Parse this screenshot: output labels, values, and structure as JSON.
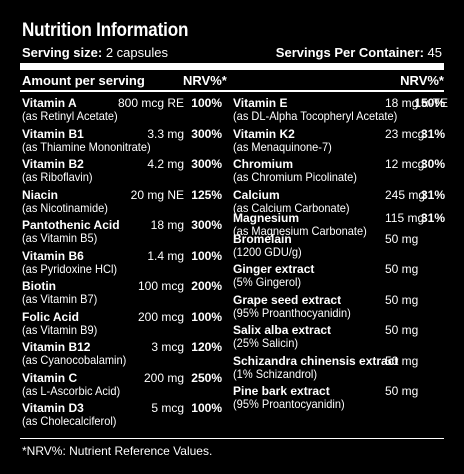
{
  "title": "Nutrition Information",
  "serving": {
    "label": "Serving size:",
    "value": "2 capsules"
  },
  "containers": {
    "label": "Servings Per Container:",
    "value": "45"
  },
  "header": {
    "amount_label": "Amount per serving",
    "nrv_left": "NRV%*",
    "nrv_right": "NRV%*"
  },
  "left": [
    {
      "name": "Vitamin A",
      "sub": "(as Retinyl Acetate)",
      "amount": "800 mcg RE",
      "nrv": "100%"
    },
    {
      "name": "Vitamin B1",
      "sub": "(as Thiamine Mononitrate)",
      "amount": "3.3 mg",
      "nrv": "300%"
    },
    {
      "name": "Vitamin B2",
      "sub": "(as Riboflavin)",
      "amount": "4.2 mg",
      "nrv": "300%"
    },
    {
      "name": "Niacin",
      "sub": "(as Nicotinamide)",
      "amount": "20 mg NE",
      "nrv": "125%"
    },
    {
      "name": "Pantothenic Acid",
      "sub": "(as Vitamin B5)",
      "amount": "18 mg",
      "nrv": "300%"
    },
    {
      "name": "Vitamin B6",
      "sub": "(as Pyridoxine HCl)",
      "amount": "1.4 mg",
      "nrv": "100%"
    },
    {
      "name": "Biotin",
      "sub": "(as Vitamin B7)",
      "amount": "100 mcg",
      "nrv": "200%"
    },
    {
      "name": "Folic Acid",
      "sub": "(as Vitamin B9)",
      "amount": "200 mcg",
      "nrv": "100%"
    },
    {
      "name": "Vitamin B12",
      "sub": "(as Cyanocobalamin)",
      "amount": "3 mcg",
      "nrv": "120%"
    },
    {
      "name": "Vitamin C",
      "sub": "(as L-Ascorbic Acid)",
      "amount": "200 mg",
      "nrv": "250%"
    },
    {
      "name": "Vitamin D3",
      "sub": "(as Cholecalciferol)",
      "amount": "5 mcg",
      "nrv": "100%"
    }
  ],
  "right": [
    {
      "name": "Vitamin E",
      "sub": "(as DL-Alpha Tocopheryl Acetate)",
      "amount": "18 mg α-TE",
      "nrv": "150%"
    },
    {
      "name": "Vitamin K2",
      "sub": "(as Menaquinone-7)",
      "amount": "23 mcg",
      "nrv": "31%"
    },
    {
      "name": "Chromium",
      "sub": "(as Chromium Picolinate)",
      "amount": "12 mcg",
      "nrv": "30%"
    },
    {
      "name": "Calcium",
      "sub": "(as Calcium Carbonate)",
      "amount": "245 mg",
      "nrv": "31%"
    },
    {
      "name": "Magnesium",
      "sub": "(as Magnesium Carbonate)",
      "amount": "115 mg",
      "nrv": "31%"
    },
    {
      "name": "Bromelain",
      "sub": "(1200 GDU/g)",
      "amount": "50 mg",
      "nrv": ""
    },
    {
      "name": "Ginger extract",
      "sub": "(5% Gingerol)",
      "amount": "50 mg",
      "nrv": ""
    },
    {
      "name": "Grape seed extract",
      "sub": "(95% Proanthocyanidin)",
      "amount": "50 mg",
      "nrv": ""
    },
    {
      "name": "Salix alba extract",
      "sub": "(25% Salicin)",
      "amount": "50 mg",
      "nrv": ""
    },
    {
      "name": "Schizandra chinensis extract",
      "sub": "(1% Schizandrol)",
      "amount": "50 mg",
      "nrv": ""
    },
    {
      "name": "Pine bark extract",
      "sub": "(95% Proantocyanidin)",
      "amount": "50 mg",
      "nrv": ""
    }
  ],
  "footnote": "*NRV%: Nutrient Reference Values."
}
